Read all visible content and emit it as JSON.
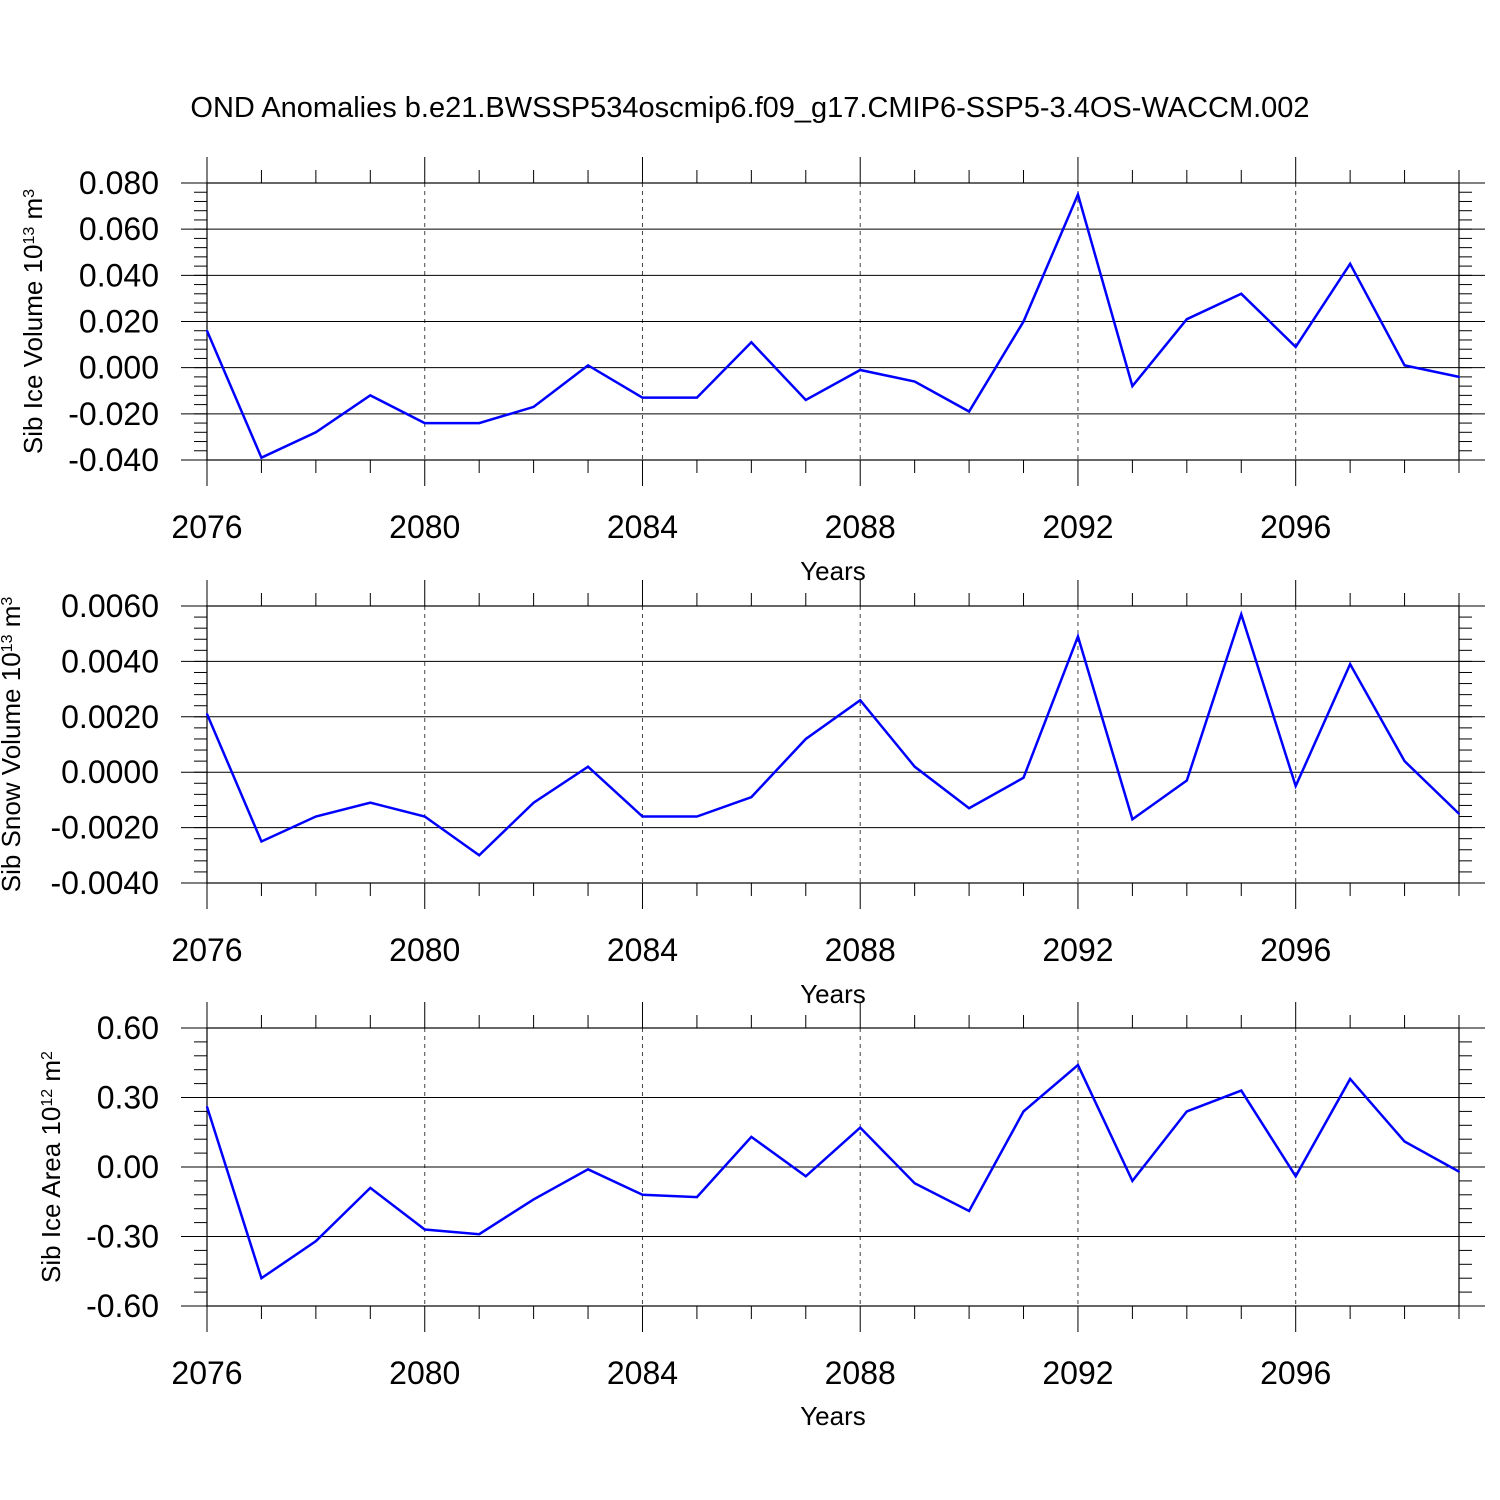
{
  "title": "OND Anomalies b.e21.BWSSP534oscmip6.f09_g17.CMIP6-SSP5-3.4OS-WACCM.002",
  "line_color": "#0000ff",
  "chart_data": [
    {
      "type": "line",
      "xlabel": "Years",
      "ylabel": "Sib Ice Volume 10",
      "ylabel_exp": "13",
      "ylabel_unit": " m",
      "ylabel_unit_exp": "3",
      "xlim": [
        2076,
        2099
      ],
      "ylim": [
        -0.04,
        0.08
      ],
      "xticks": [
        2076,
        2080,
        2084,
        2088,
        2092,
        2096
      ],
      "yticks": [
        "0.080",
        "0.060",
        "0.040",
        "0.020",
        "0.000",
        "-0.020",
        "-0.040"
      ],
      "ytick_values": [
        0.08,
        0.06,
        0.04,
        0.02,
        0.0,
        -0.02,
        -0.04
      ],
      "ytick_minor_step": 0.004,
      "grid": "dashed vertical at major x ticks",
      "x": [
        2076,
        2077,
        2078,
        2079,
        2080,
        2081,
        2082,
        2083,
        2084,
        2085,
        2086,
        2087,
        2088,
        2089,
        2090,
        2091,
        2092,
        2093,
        2094,
        2095,
        2096,
        2097,
        2098,
        2099
      ],
      "y": [
        0.016,
        -0.039,
        -0.028,
        -0.012,
        -0.024,
        -0.024,
        -0.017,
        0.001,
        -0.013,
        -0.013,
        0.011,
        -0.014,
        -0.001,
        -0.006,
        -0.019,
        0.02,
        0.075,
        -0.008,
        0.021,
        0.032,
        0.009,
        0.045,
        0.001,
        -0.004
      ]
    },
    {
      "type": "line",
      "xlabel": "Years",
      "ylabel": "Sib Snow Volume 10",
      "ylabel_exp": "13",
      "ylabel_unit": " m",
      "ylabel_unit_exp": "3",
      "xlim": [
        2076,
        2099
      ],
      "ylim": [
        -0.004,
        0.006
      ],
      "xticks": [
        2076,
        2080,
        2084,
        2088,
        2092,
        2096
      ],
      "yticks": [
        "0.0060",
        "0.0040",
        "0.0020",
        "0.0000",
        "-0.0020",
        "-0.0040"
      ],
      "ytick_values": [
        0.006,
        0.004,
        0.002,
        0.0,
        -0.002,
        -0.004
      ],
      "ytick_minor_step": 0.0004,
      "grid": "dashed vertical at major x ticks",
      "x": [
        2076,
        2077,
        2078,
        2079,
        2080,
        2081,
        2082,
        2083,
        2084,
        2085,
        2086,
        2087,
        2088,
        2089,
        2090,
        2091,
        2092,
        2093,
        2094,
        2095,
        2096,
        2097,
        2098,
        2099
      ],
      "y": [
        0.0021,
        -0.0025,
        -0.0016,
        -0.0011,
        -0.0016,
        -0.003,
        -0.0011,
        0.0002,
        -0.0016,
        -0.0016,
        -0.0009,
        0.0012,
        0.0026,
        0.0002,
        -0.0013,
        -0.0002,
        0.0049,
        -0.0017,
        -0.0003,
        0.0057,
        -0.0005,
        0.0039,
        0.0004,
        -0.0015
      ]
    },
    {
      "type": "line",
      "xlabel": "Years",
      "ylabel": "Sib Ice Area 10",
      "ylabel_exp": "12",
      "ylabel_unit": " m",
      "ylabel_unit_exp": "2",
      "xlim": [
        2076,
        2099
      ],
      "ylim": [
        -0.6,
        0.6
      ],
      "xticks": [
        2076,
        2080,
        2084,
        2088,
        2092,
        2096
      ],
      "yticks": [
        "0.60",
        "0.30",
        "0.00",
        "-0.30",
        "-0.60"
      ],
      "ytick_values": [
        0.6,
        0.3,
        0.0,
        -0.3,
        -0.6
      ],
      "ytick_minor_step": 0.06,
      "grid": "dashed vertical at major x ticks",
      "x": [
        2076,
        2077,
        2078,
        2079,
        2080,
        2081,
        2082,
        2083,
        2084,
        2085,
        2086,
        2087,
        2088,
        2089,
        2090,
        2091,
        2092,
        2093,
        2094,
        2095,
        2096,
        2097,
        2098,
        2099
      ],
      "y": [
        0.26,
        -0.48,
        -0.32,
        -0.09,
        -0.27,
        -0.29,
        -0.14,
        -0.01,
        -0.12,
        -0.13,
        0.13,
        -0.04,
        0.17,
        -0.07,
        -0.19,
        0.24,
        0.44,
        -0.06,
        0.24,
        0.33,
        -0.04,
        0.38,
        0.11,
        -0.02
      ]
    }
  ]
}
